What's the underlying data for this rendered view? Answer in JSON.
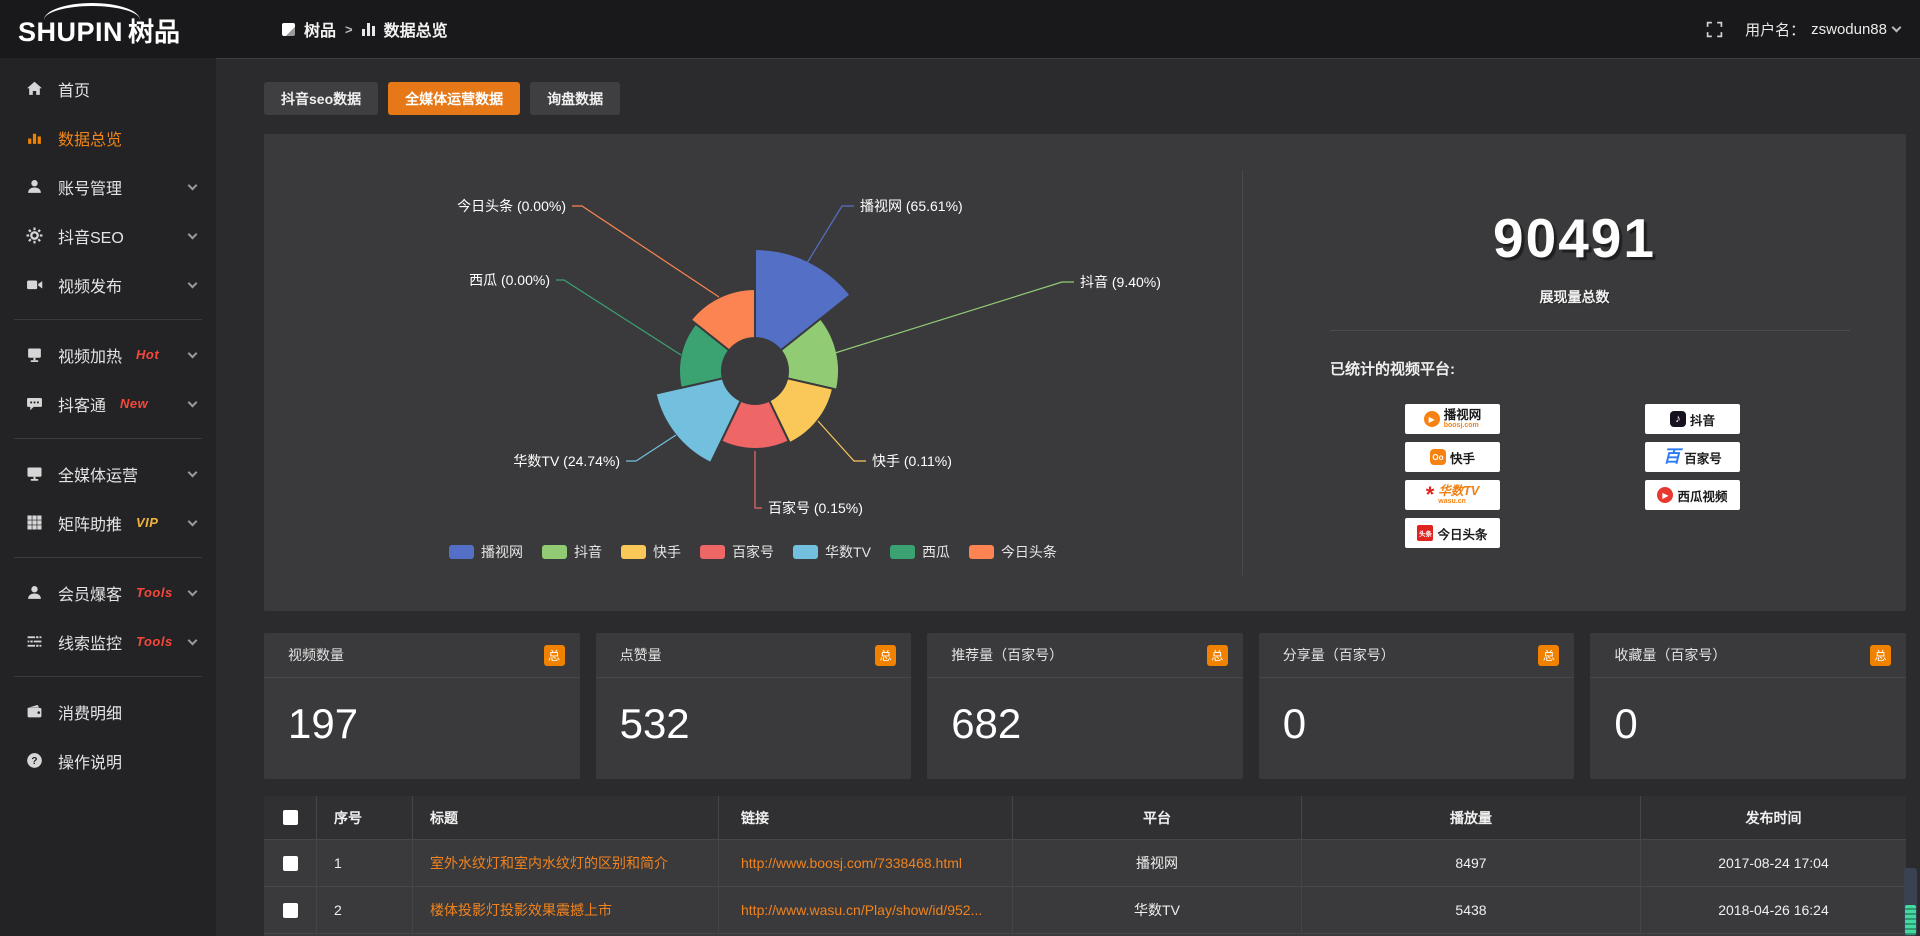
{
  "topbar": {
    "logo_en": "SHUPIN",
    "logo_cn": "树品",
    "breadcrumb_root": "树品",
    "breadcrumb_sep": ">",
    "breadcrumb_current": "数据总览",
    "username_label": "用户名：",
    "username": "zswodun88"
  },
  "tabs": [
    {
      "label": "抖音seo数据",
      "active": false
    },
    {
      "label": "全媒体运营数据",
      "active": true
    },
    {
      "label": "询盘数据",
      "active": false
    }
  ],
  "sidebar": {
    "groups": [
      [
        {
          "label": "首页",
          "icon": "home-icon"
        },
        {
          "label": "数据总览",
          "icon": "chart-icon",
          "active": true
        },
        {
          "label": "账号管理",
          "icon": "user-icon",
          "chevron": true
        },
        {
          "label": "抖音SEO",
          "icon": "gear-icon",
          "chevron": true
        },
        {
          "label": "视频发布",
          "icon": "video-icon",
          "chevron": true
        }
      ],
      [
        {
          "label": "视频加热",
          "icon": "screen-icon",
          "badge": "Hot",
          "badge_color": "red",
          "chevron": true
        },
        {
          "label": "抖客通",
          "icon": "chat-icon",
          "badge": "New",
          "badge_color": "red",
          "chevron": true
        }
      ],
      [
        {
          "label": "全媒体运营",
          "icon": "monitor-icon",
          "chevron": true
        },
        {
          "label": "矩阵助推",
          "icon": "grid-icon",
          "badge": "VIP",
          "badge_color": "yellow",
          "chevron": true
        }
      ],
      [
        {
          "label": "会员爆客",
          "icon": "member-icon",
          "badge": "Tools",
          "badge_color": "red",
          "chevron": true
        },
        {
          "label": "线索监控",
          "icon": "sliders-icon",
          "badge": "Tools",
          "badge_color": "red",
          "chevron": true
        }
      ],
      [
        {
          "label": "消费明细",
          "icon": "wallet-icon"
        },
        {
          "label": "操作说明",
          "icon": "question-icon"
        }
      ]
    ]
  },
  "chart_data": {
    "type": "pie",
    "subtype": "nightingale-rose",
    "title": "",
    "unit": "%",
    "label_format": "{name} ({value}%)",
    "legend_position": "bottom",
    "series": [
      {
        "name": "播视网",
        "value": 65.61,
        "color": "#5470c6"
      },
      {
        "name": "抖音",
        "value": 9.4,
        "color": "#91cc75"
      },
      {
        "name": "快手",
        "value": 0.11,
        "color": "#fac858"
      },
      {
        "name": "百家号",
        "value": 0.15,
        "color": "#ee6666"
      },
      {
        "name": "华数TV",
        "value": 24.74,
        "color": "#73c0de"
      },
      {
        "name": "西瓜",
        "value": 0.0,
        "color": "#3ba272"
      },
      {
        "name": "今日头条",
        "value": 0.0,
        "color": "#fc8452"
      }
    ],
    "radius_hints": [
      122,
      84,
      80,
      78,
      102,
      76,
      82
    ],
    "legend": [
      "播视网",
      "抖音",
      "快手",
      "百家号",
      "华数TV",
      "西瓜",
      "今日头条"
    ]
  },
  "summary": {
    "total_value": "90491",
    "total_label": "展现量总数",
    "platforms_label": "已统计的视频平台:",
    "platforms": [
      {
        "name": "播视网",
        "sub": "boosj.com",
        "logo": "boosj"
      },
      {
        "name": "抖音",
        "logo": "douyin"
      },
      {
        "name": "快手",
        "logo": "kuaishou"
      },
      {
        "name": "百家号",
        "logo": "baijiahao"
      },
      {
        "name": "华数TV",
        "sub": "wasu.cn",
        "logo": "wasu"
      },
      {
        "name": "西瓜视频",
        "logo": "xigua"
      },
      {
        "name": "今日头条",
        "logo": "toutiao"
      }
    ]
  },
  "stats_cards": [
    {
      "label": "视频数量",
      "badge": "总",
      "value": "197"
    },
    {
      "label": "点赞量",
      "badge": "总",
      "value": "532"
    },
    {
      "label": "推荐量（百家号）",
      "badge": "总",
      "value": "682"
    },
    {
      "label": "分享量（百家号）",
      "badge": "总",
      "value": "0"
    },
    {
      "label": "收藏量（百家号）",
      "badge": "总",
      "value": "0"
    }
  ],
  "table": {
    "headers": [
      "序号",
      "标题",
      "链接",
      "平台",
      "播放量",
      "发布时间"
    ],
    "rows": [
      {
        "cells": [
          "1",
          "室外水纹灯和室内水纹灯的区别和简介",
          "http://www.boosj.com/7338468.html",
          "播视网",
          "8497",
          "2017-08-24 17:04"
        ]
      },
      {
        "cells": [
          "2",
          "楼体投影灯投影效果震撼上市",
          "http://www.wasu.cn/Play/show/id/952...",
          "华数TV",
          "5438",
          "2018-04-26 16:24"
        ]
      }
    ]
  },
  "colors": {
    "accent_orange": "#e67817",
    "badge_orange": "#f08200",
    "link_orange": "#f0831e",
    "hot_red": "#f5483b",
    "vip_yellow": "#f0b43c",
    "scrollbar_teal": "#45d9a2"
  }
}
